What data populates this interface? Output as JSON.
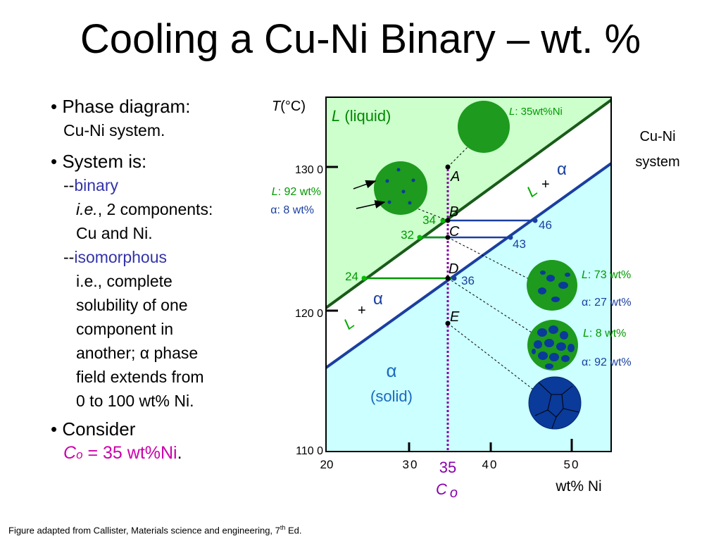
{
  "title": "Cooling a Cu-Ni Binary – wt. %",
  "bullets": {
    "b1": "• Phase diagram:",
    "b1_sub": "Cu-Ni system.",
    "b2": "• System is:",
    "b2_dash1": "--",
    "b2_binary": "binary",
    "b2_ie": "i.e.",
    "b2_ie_rest": ", 2 components:",
    "b2_cu": "Cu and Ni.",
    "b2_dash2": "--",
    "b2_iso": "isomorphous",
    "iso_l1": "i.e., complete",
    "iso_l2": "solubility of one",
    "iso_l3": "component in",
    "iso_l4a": "another; ",
    "iso_alpha": "α",
    "iso_l4b": " phase",
    "iso_l5": "field extends from",
    "iso_l6": "0 to 100 wt% Ni.",
    "b3": "• Consider",
    "co_c": "C",
    "co_o": "o",
    "co_rest": " = 35 wt%Ni",
    "co_period": "."
  },
  "caption": {
    "text": "Figure adapted from Callister, Materials science and engineering, 7",
    "sup": "th",
    "tail": " Ed."
  },
  "diagram": {
    "ylabel_T": "T",
    "ylabel_unit": "(°C)",
    "yticks": [
      "130 0",
      "120 0",
      "110 0"
    ],
    "xticks": [
      "20",
      "30",
      "35",
      "40",
      "50"
    ],
    "xlabel": "wt% Ni",
    "co_label_c": "C",
    "co_label_o": "o",
    "system_l1": "Cu-Ni",
    "system_l2": "system",
    "region_liquid_L": "L",
    "region_liquid_rest": " (liquid)",
    "region_two_phase_L": "L",
    "region_two_phase_plus": "+",
    "region_two_phase_alpha": "α",
    "region_solid_alpha": "α",
    "region_solid_rest": "(solid)",
    "points": [
      "A",
      "B",
      "C",
      "D",
      "E"
    ],
    "tie_values": [
      "34",
      "46",
      "32",
      "43",
      "24",
      "36"
    ],
    "annot_A_L": "L",
    "annot_A_rest": ": 35wt%Ni",
    "annot_B_L": "L",
    "annot_B_rest": ": 92 wt%",
    "annot_B_alpha": "α",
    "annot_B_alpha_rest": ": 8 wt%",
    "annot_D_L": "L",
    "annot_D_rest": ": 73 wt%",
    "annot_D_alpha": "α",
    "annot_D_alpha_rest": ": 27 wt%",
    "annot_E_L": "L",
    "annot_E_rest": ": 8 wt%",
    "annot_E_alpha": "α",
    "annot_E_alpha_rest": ": 92 wt%",
    "colors": {
      "liquid_bg": "#ccffcc",
      "solid_bg": "#ccffff",
      "liquidus": "#1a5a1a",
      "solidus": "#1a3fa0",
      "tie_green": "#009900",
      "tie_blue": "#1a3fa0",
      "co_line": "#8800aa",
      "grain_green": "#1e9a1e",
      "grain_blue": "#0a3a9a"
    }
  }
}
